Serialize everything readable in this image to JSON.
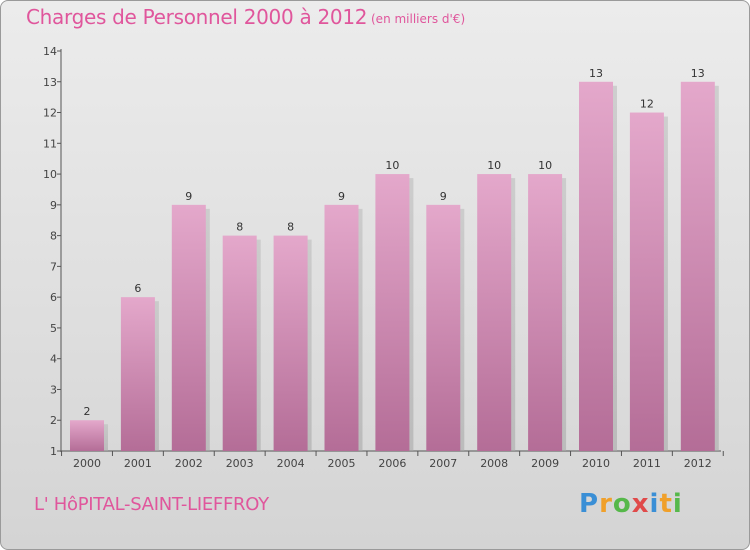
{
  "title": "Charges de Personnel 2000 à 2012",
  "subtitle": "(en milliers d'€)",
  "commune": "L' HôPITAL-SAINT-LIEFFROY",
  "logo": {
    "letters": [
      "P",
      "r",
      "o",
      "x",
      "i",
      "t",
      "i"
    ],
    "colors": [
      "#3a8fd6",
      "#f0a02a",
      "#56b84a",
      "#e04a4a",
      "#3a8fd6",
      "#f0a02a",
      "#56b84a"
    ]
  },
  "colors": {
    "bar": "#d995bb",
    "accent": "#e0569c",
    "axis": "#555555"
  },
  "chart_data": {
    "type": "bar",
    "categories": [
      "2000",
      "2001",
      "2002",
      "2003",
      "2004",
      "2005",
      "2006",
      "2007",
      "2008",
      "2009",
      "2010",
      "2011",
      "2012"
    ],
    "values": [
      2,
      6,
      9,
      8,
      8,
      9,
      10,
      9,
      10,
      10,
      13,
      12,
      13
    ],
    "title": "Charges de Personnel 2000 à 2012",
    "ylim": [
      1,
      14
    ],
    "yticks": [
      1,
      2,
      3,
      4,
      5,
      6,
      7,
      8,
      9,
      10,
      11,
      12,
      13,
      14
    ],
    "grid": false
  }
}
